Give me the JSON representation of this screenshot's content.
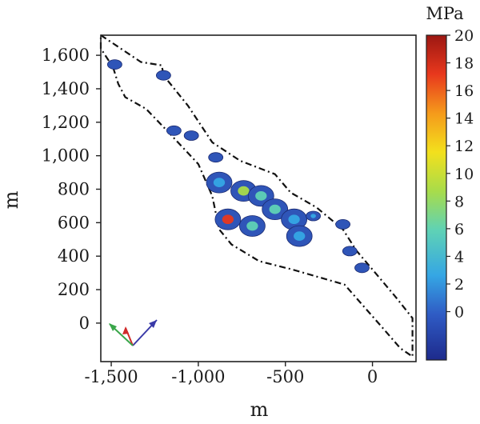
{
  "chart_data": {
    "type": "heatmap",
    "title": "",
    "xlabel": "m",
    "ylabel": "m",
    "xlim": [
      -1560,
      250
    ],
    "ylim": [
      -230,
      1720
    ],
    "x_ticks": [
      -1500,
      -1000,
      -500,
      0
    ],
    "x_tick_labels": [
      "-1,500",
      "-1,000",
      "-500",
      "0"
    ],
    "y_ticks": [
      0,
      200,
      400,
      600,
      800,
      1000,
      1200,
      1400,
      1600
    ],
    "y_tick_labels": [
      "0",
      "200",
      "400",
      "600",
      "800",
      "1,000",
      "1,200",
      "1,400",
      "1,600"
    ],
    "colorbar": {
      "unit": "MPa",
      "range": [
        -3.5,
        20
      ],
      "ticks": [
        20,
        18,
        16,
        14,
        12,
        10,
        8,
        6,
        4,
        2,
        0
      ],
      "tick_labels": [
        "20",
        "18",
        "16",
        "14",
        "12",
        "10",
        "8",
        "6",
        "4",
        "2",
        "0"
      ],
      "colormap": [
        "#1d2a8c",
        "#2f5bc4",
        "#35a6e4",
        "#5fd2b5",
        "#a8dc4a",
        "#f3e01d",
        "#f59a1b",
        "#e8381d",
        "#9c1712"
      ]
    },
    "boundary_outline": [
      [
        -1560,
        1720
      ],
      [
        -1330,
        1560
      ],
      [
        -1210,
        1540
      ],
      [
        -1200,
        1480
      ],
      [
        -1060,
        1300
      ],
      [
        -920,
        1080
      ],
      [
        -760,
        970
      ],
      [
        -560,
        890
      ],
      [
        -470,
        780
      ],
      [
        -320,
        690
      ],
      [
        -170,
        560
      ],
      [
        -90,
        430
      ],
      [
        0,
        320
      ],
      [
        130,
        160
      ],
      [
        230,
        30
      ],
      [
        230,
        -200
      ],
      [
        160,
        -150
      ],
      [
        60,
        -30
      ],
      [
        -160,
        230
      ],
      [
        -460,
        320
      ],
      [
        -650,
        370
      ],
      [
        -810,
        470
      ],
      [
        -880,
        560
      ],
      [
        -920,
        760
      ],
      [
        -1000,
        950
      ],
      [
        -1180,
        1150
      ],
      [
        -1300,
        1280
      ],
      [
        -1420,
        1350
      ],
      [
        -1460,
        1430
      ],
      [
        -1490,
        1530
      ],
      [
        -1560,
        1640
      ]
    ],
    "stress_patches": [
      {
        "x": -1480,
        "y": 1545,
        "value": 0
      },
      {
        "x": -1200,
        "y": 1480,
        "value": 0
      },
      {
        "x": -1140,
        "y": 1150,
        "value": 0
      },
      {
        "x": -1040,
        "y": 1120,
        "value": -1
      },
      {
        "x": -900,
        "y": 990,
        "value": 0
      },
      {
        "x": -880,
        "y": 840,
        "value": 2
      },
      {
        "x": -740,
        "y": 790,
        "value": 8
      },
      {
        "x": -640,
        "y": 760,
        "value": 4
      },
      {
        "x": -560,
        "y": 680,
        "value": 5
      },
      {
        "x": -830,
        "y": 620,
        "value": 16
      },
      {
        "x": -690,
        "y": 580,
        "value": 5
      },
      {
        "x": -450,
        "y": 620,
        "value": 2
      },
      {
        "x": -420,
        "y": 520,
        "value": 3
      },
      {
        "x": -340,
        "y": 640,
        "value": 1
      },
      {
        "x": -170,
        "y": 590,
        "value": 0
      },
      {
        "x": -130,
        "y": 430,
        "value": 0
      },
      {
        "x": -60,
        "y": 330,
        "value": 0
      }
    ]
  },
  "orientation_axes": {
    "x_axis_color": "#3a3aa8",
    "y_axis_color": "#d02a2a",
    "z_axis_color": "#3aa64a"
  }
}
